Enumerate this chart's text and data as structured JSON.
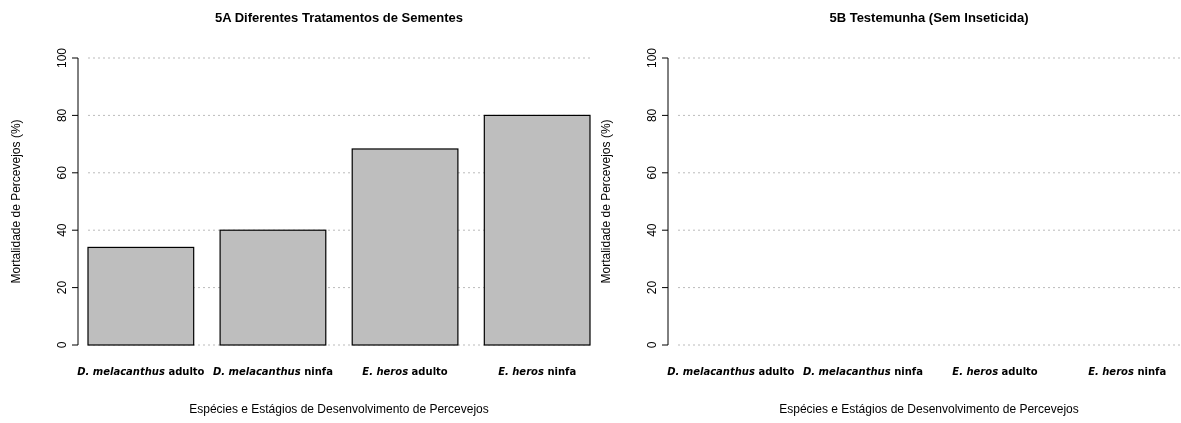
{
  "chart_data": [
    {
      "type": "bar",
      "title": "5A Diferentes Tratamentos de Sementes",
      "xlabel": "Espécies e Estágios de Desenvolvimento de Percevejos",
      "ylabel": "Mortalidade de Percevejos (%)",
      "categories": [
        "D. melacanthus adulto",
        "D. melacanthus ninfa",
        "E. heros adulto",
        "E. heros ninfa"
      ],
      "values": [
        34,
        40,
        68.3,
        80
      ],
      "color": "#bebebe",
      "ylim": [
        0,
        100
      ],
      "yticks": [
        0,
        20,
        40,
        60,
        80,
        100
      ],
      "grid": "y"
    },
    {
      "type": "bar",
      "title": "5B Testemunha (Sem Inseticida)",
      "xlabel": "Espécies e Estágios de Desenvolvimento de Percevejos",
      "ylabel": "Mortalidade de Percevejos (%)",
      "categories": [
        "D. melacanthus adulto",
        "D. melacanthus ninfa",
        "E. heros adulto",
        "E. heros ninfa"
      ],
      "values": [
        0,
        0,
        0,
        0
      ],
      "color": "#bebebe",
      "ylim": [
        0,
        100
      ],
      "yticks": [
        0,
        20,
        40,
        60,
        80,
        100
      ],
      "grid": "y"
    }
  ]
}
